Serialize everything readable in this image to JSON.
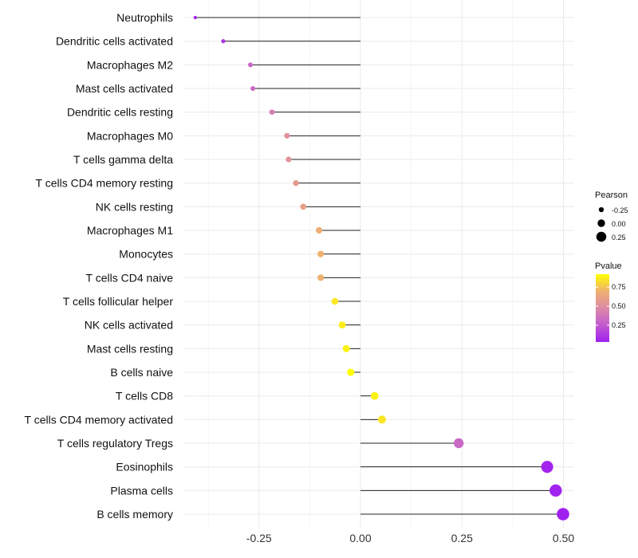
{
  "chart_data": {
    "type": "lollipop",
    "title": "",
    "xlabel": "",
    "ylabel": "",
    "xlim": [
      -0.41,
      0.53
    ],
    "x_ticks": [
      -0.25,
      0.0,
      0.25,
      0.5
    ],
    "x_tick_labels": [
      "-0.25",
      "0.00",
      "0.25",
      "0.50"
    ],
    "grid": true,
    "categories": [
      "Neutrophils",
      "Dendritic cells activated",
      "Macrophages M2",
      "Mast cells activated",
      "Dendritic cells resting",
      "Macrophages M0",
      "T cells gamma delta",
      "T cells CD4 memory resting",
      "NK cells resting",
      "Macrophages M1",
      "Monocytes",
      "T cells CD4 naive",
      "T cells follicular helper",
      "NK cells activated",
      "Mast cells resting",
      "B cells naive",
      "T cells CD8",
      "T cells CD4 memory activated",
      "T cells regulatory  Tregs ",
      "Eosinophils",
      "Plasma cells",
      "B cells memory"
    ],
    "pearson": [
      -0.407,
      -0.338,
      -0.271,
      -0.265,
      -0.218,
      -0.181,
      -0.177,
      -0.159,
      -0.141,
      -0.102,
      -0.098,
      -0.098,
      -0.063,
      -0.045,
      -0.035,
      -0.024,
      0.035,
      0.053,
      0.242,
      0.46,
      0.481,
      0.499
    ],
    "pvalue": [
      0.05,
      0.12,
      0.3,
      0.32,
      0.42,
      0.52,
      0.52,
      0.56,
      0.6,
      0.68,
      0.7,
      0.7,
      0.85,
      0.87,
      0.88,
      0.92,
      0.88,
      0.85,
      0.32,
      0.05,
      0.04,
      0.03
    ],
    "legend": {
      "size_title": "Pearson",
      "size_labels": [
        "-0.25",
        "0.00",
        "0.25"
      ],
      "size_values": [
        -0.25,
        0,
        0.25
      ],
      "color_title": "Pvalue",
      "color_labels": [
        "0.75",
        "0.50",
        "0.25"
      ],
      "color_values": [
        0.75,
        0.5,
        0.25
      ],
      "color_range": [
        0.03,
        0.92
      ],
      "colors": {
        "low": "#a020f0",
        "mid": "#df8fa0",
        "high": "#ffff00"
      },
      "placement": "right"
    }
  }
}
